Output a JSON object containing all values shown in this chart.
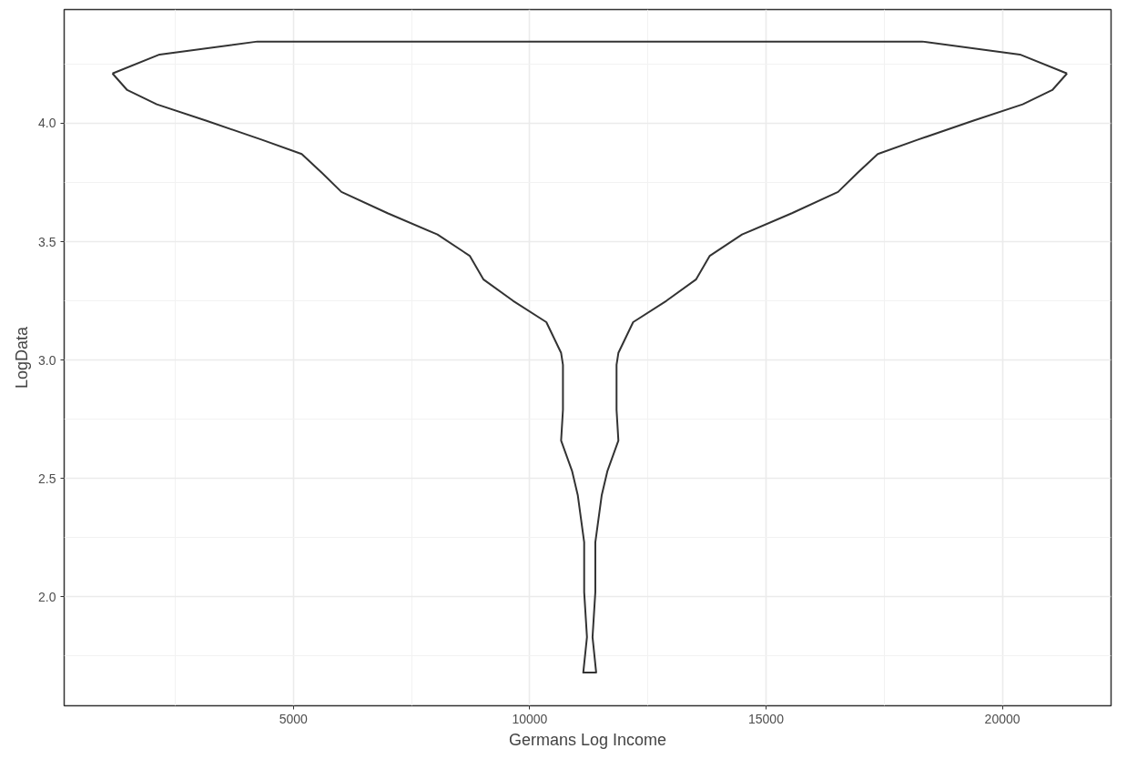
{
  "chart_data": {
    "type": "line",
    "xlabel": "Germans Log Income",
    "ylabel": "LogData",
    "xlim": [
      150,
      22300
    ],
    "ylim": [
      1.54,
      4.48
    ],
    "xticks": [
      5000,
      10000,
      15000,
      20000
    ],
    "yticks": [
      {
        "value": 2,
        "label": "2.0"
      },
      {
        "value": 2.5,
        "label": "2.5"
      },
      {
        "value": 3,
        "label": "3.0"
      },
      {
        "value": 3.5,
        "label": "3.5"
      },
      {
        "value": 4,
        "label": "4.0"
      }
    ],
    "grid": true,
    "line_style": "solid",
    "series": [
      {
        "color": "#333333",
        "x": [
          1172,
          2168,
          4238,
          18302,
          20372,
          21368
        ],
        "values": [
          4.21,
          4.29,
          4.345,
          4.345,
          4.29,
          4.21
        ]
      },
      {
        "color": "#333333",
        "x": [
          1172,
          1484,
          2109,
          3164,
          4336,
          5176,
          5605,
          6016,
          6992,
          8047,
          8730,
          9023,
          9648,
          10352,
          10664,
          10703,
          10703,
          10664,
          10898,
          11016,
          11152,
          11152,
          11211,
          11133,
          11406,
          11329,
          11388,
          11388,
          11524,
          11642,
          11876,
          11837,
          11837,
          11876,
          12188,
          12892,
          13517,
          13810,
          14493,
          15548,
          16524,
          16935,
          17364,
          18204,
          19376,
          20431,
          21056,
          21368
        ],
        "values": [
          4.21,
          4.14,
          4.08,
          4.01,
          3.93,
          3.87,
          3.79,
          3.71,
          3.62,
          3.53,
          3.44,
          3.34,
          3.25,
          3.16,
          3.03,
          2.98,
          2.79,
          2.66,
          2.53,
          2.43,
          2.23,
          2.02,
          1.83,
          1.68,
          1.68,
          1.83,
          2.02,
          2.23,
          2.43,
          2.53,
          2.66,
          2.79,
          2.98,
          3.03,
          3.16,
          3.25,
          3.34,
          3.44,
          3.53,
          3.62,
          3.71,
          3.79,
          3.87,
          3.93,
          4.01,
          4.08,
          4.14,
          4.21
        ]
      }
    ]
  }
}
